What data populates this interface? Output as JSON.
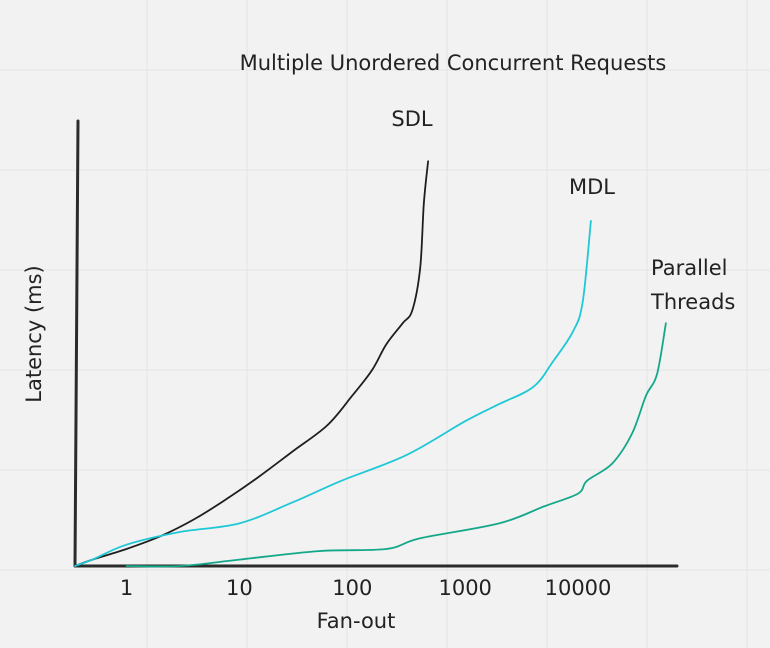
{
  "chart_data": {
    "type": "line",
    "title": "Multiple Unordered Concurrent Requests",
    "xlabel": "Fan-out",
    "ylabel": "Latency (ms)",
    "x_scale": "log",
    "x_ticks": [
      {
        "value": 1,
        "label": "1"
      },
      {
        "value": 10,
        "label": "10"
      },
      {
        "value": 100,
        "label": "100"
      },
      {
        "value": 1000,
        "label": "1000"
      },
      {
        "value": 10000,
        "label": "10000"
      }
    ],
    "xlim": [
      0.35,
      80000
    ],
    "ylim": [
      0,
      100
    ],
    "grid": true,
    "legend": "labels at line ends",
    "series": [
      {
        "name": "SDL",
        "label_lines": [
          "SDL"
        ],
        "color": "#1e1e1e",
        "x": [
          0.35,
          0.5,
          1,
          2,
          4,
          8,
          15,
          30,
          60,
          100,
          150,
          200,
          280,
          340,
          400,
          430,
          470
        ],
        "y": [
          0,
          1.5,
          4,
          7,
          11,
          16,
          21,
          27,
          33,
          40,
          46,
          52,
          57,
          60,
          70,
          85,
          95
        ]
      },
      {
        "name": "MDL",
        "label_lines": [
          "MDL"
        ],
        "color": "#1fc8d6",
        "x": [
          0.35,
          0.5,
          1,
          3,
          10,
          30,
          80,
          300,
          1000,
          2000,
          4000,
          6000,
          9000,
          11000,
          13000
        ],
        "y": [
          0,
          1.5,
          5,
          8,
          10,
          15,
          20,
          26,
          34,
          38,
          42,
          48,
          55,
          62,
          81
        ]
      },
      {
        "name": "Parallel Threads",
        "label_lines": [
          "Parallel",
          "Threads"
        ],
        "color": "#13a88a",
        "x": [
          1,
          3,
          10,
          50,
          200,
          400,
          2000,
          5000,
          10000,
          12000,
          20000,
          30000,
          40000,
          50000,
          60000
        ],
        "y": [
          0,
          0,
          1.5,
          3.5,
          4,
          6.5,
          10,
          14,
          17,
          20,
          24,
          31,
          40,
          45,
          57
        ]
      }
    ]
  }
}
